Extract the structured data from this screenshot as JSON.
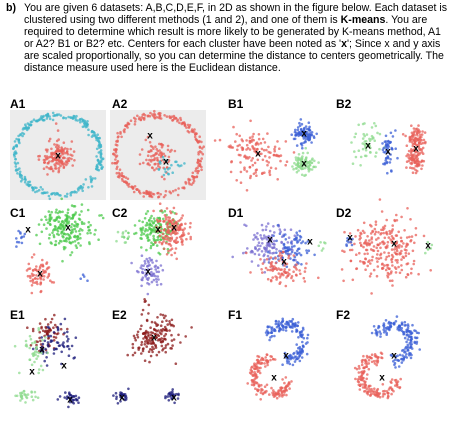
{
  "question": {
    "part_label": "b)",
    "lines": [
      "You are given 6 datasets: A,B,C,D,E,F, in 2D as shown in the figure below. Each dataset is",
      "clustered using two different methods (1 and 2), and one of them is",
      "required to determine which result is more likely to be generated by K-means method, A1",
      "or A2? B1 or B2? etc. Centers for each cluster have been noted as '",
      "are scaled proportionally, so you can determine the distance to centers geometrically. The",
      "distance measure used here is the Euclidean distance."
    ],
    "bold_kmeans": "K-means",
    "tail_line2": ". You are",
    "bold_x": "x",
    "tail_line4": "'; Since x and y axis"
  },
  "panels": [
    {
      "label": "A1"
    },
    {
      "label": "A2"
    },
    {
      "label": "B1"
    },
    {
      "label": "B2"
    },
    {
      "label": "C1"
    },
    {
      "label": "C2"
    },
    {
      "label": "D1"
    },
    {
      "label": "D2"
    },
    {
      "label": "E1"
    },
    {
      "label": "E2"
    },
    {
      "label": "F1"
    },
    {
      "label": "F2"
    }
  ],
  "center_marker": "x",
  "colors": {
    "red": "#e8605a",
    "cyan": "#3fb6c9",
    "blue": "#3b5fd6",
    "green": "#4cc94c",
    "lightgreen": "#8fdb8f",
    "darkred": "#8b1a1a",
    "navy": "#1a1a7a",
    "purple": "#7a6fd0",
    "panel_bg": "#ececec"
  }
}
